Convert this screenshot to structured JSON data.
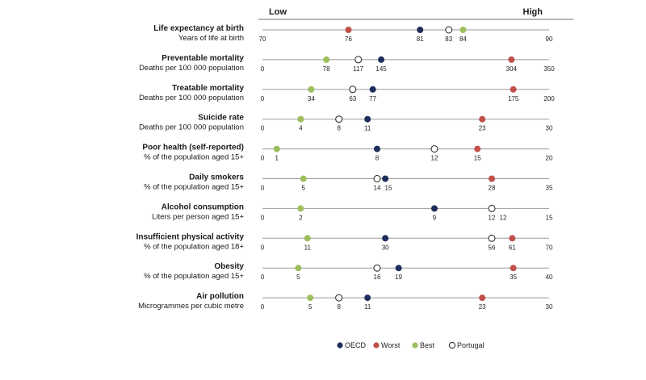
{
  "header": {
    "low_label": "Low",
    "high_label": "High"
  },
  "colors": {
    "oecd": "#1f2d5a",
    "worst": "#c1504a",
    "best": "#9cbf5c",
    "portugal": "#ffffff",
    "axis": "#9a9a9a"
  },
  "legend": [
    {
      "key": "oecd",
      "label": "OECD"
    },
    {
      "key": "worst",
      "label": "Worst"
    },
    {
      "key": "best",
      "label": "Best"
    },
    {
      "key": "portugal",
      "label": "Portugal"
    }
  ],
  "chart_data": {
    "type": "scatter",
    "series_names": [
      "OECD",
      "Worst",
      "Best",
      "Portugal"
    ],
    "indicators": [
      {
        "title": "Life expectancy at birth",
        "unit": "Years of life at birth",
        "min": 70,
        "max": 90,
        "points": {
          "worst": 76,
          "oecd": 81,
          "portugal": 83,
          "best": 84
        }
      },
      {
        "title": "Preventable mortality",
        "unit": "Deaths per 100 000 population",
        "min": 0,
        "max": 350,
        "points": {
          "best": 78,
          "portugal": 117,
          "oecd": 145,
          "worst": 304
        }
      },
      {
        "title": "Treatable mortality",
        "unit": "Deaths per 100 000 population",
        "min": 0,
        "max": 200,
        "points": {
          "best": 34,
          "portugal": 63,
          "oecd": 77,
          "worst": 175
        }
      },
      {
        "title": "Suicide rate",
        "unit": "Deaths per 100 000 population",
        "min": 0,
        "max": 30,
        "points": {
          "best": 4,
          "portugal": 8,
          "oecd": 11,
          "worst": 23
        }
      },
      {
        "title": "Poor health (self-reported)",
        "unit": "% of the population aged 15+",
        "min": 0,
        "max": 20,
        "points": {
          "best": 1,
          "oecd": 8,
          "portugal": 12,
          "worst": 15
        }
      },
      {
        "title": "Daily smokers",
        "unit": "% of the population aged 15+",
        "min": 0,
        "max": 35,
        "points": {
          "best": 5,
          "portugal": 14,
          "oecd": 15,
          "worst": 28
        }
      },
      {
        "title": "Alcohol consumption",
        "unit": "Liters per person aged 15+",
        "min": 0,
        "max": 15,
        "points": {
          "best": 2,
          "oecd": 9,
          "portugal": 12,
          "worst": 12
        }
      },
      {
        "title": "Insufficient physical activity",
        "unit": "% of the population aged 18+",
        "min": 0,
        "max": 70,
        "points": {
          "best": 11,
          "oecd": 30,
          "portugal": 56,
          "worst": 61
        }
      },
      {
        "title": "Obesity",
        "unit": "% of the population aged 15+",
        "min": 0,
        "max": 40,
        "points": {
          "best": 5,
          "portugal": 16,
          "oecd": 19,
          "worst": 35
        }
      },
      {
        "title": "Air pollution",
        "unit": "Microgrammes per cubic metre",
        "min": 0,
        "max": 30,
        "points": {
          "best": 5,
          "portugal": 8,
          "oecd": 11,
          "worst": 23
        }
      }
    ],
    "label_rows": [
      [
        "76",
        "81",
        "83",
        "84"
      ],
      [
        "78",
        "117",
        "145",
        "304"
      ],
      [
        "34",
        "63",
        "77",
        "175"
      ],
      [
        "4",
        "8",
        "11",
        "23"
      ],
      [
        "1",
        "8",
        "12",
        "15"
      ],
      [
        "5",
        "14",
        "15",
        "28"
      ],
      [
        "2",
        "9",
        "12",
        "12"
      ],
      [
        "11",
        "30",
        "56",
        "61"
      ],
      [
        "5",
        "16",
        "19",
        "35"
      ],
      [
        "5",
        "8",
        "11",
        "23"
      ]
    ]
  }
}
